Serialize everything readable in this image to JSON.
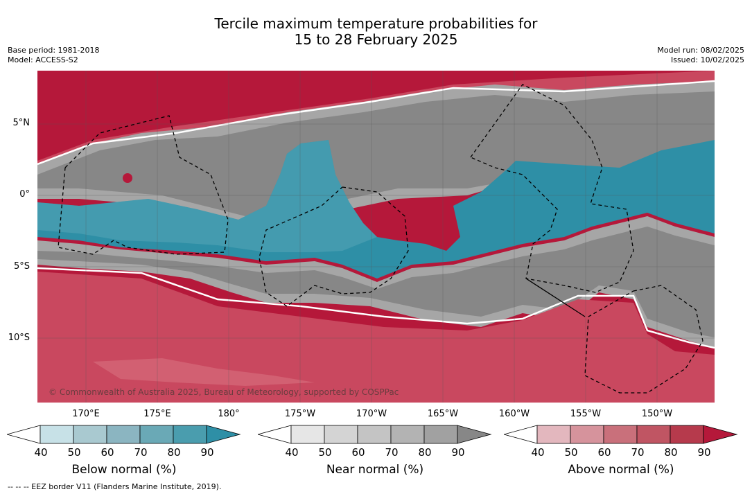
{
  "title": {
    "line1": "Tercile maximum temperature probabilities for",
    "line2": "15 to 28 February 2025"
  },
  "left_info": {
    "base_period": "Base period: 1981-2018",
    "model": "Model: ACCESS-S2"
  },
  "right_info": {
    "model_run": "Model run: 08/02/2025",
    "issued": "Issued: 10/02/2025"
  },
  "map": {
    "lat_labels": [
      "5°N",
      "0°",
      "5°S",
      "10°S"
    ],
    "lon_labels": [
      "170°E",
      "175°E",
      "180°",
      "175°W",
      "170°W",
      "165°W",
      "160°W",
      "155°W",
      "150°W"
    ],
    "copyright": "© Commonwealth of Australia 2025, Bureau of Meteorology, supported by COSPPac",
    "colors": {
      "above_strong": "#b5183a",
      "above_mid": "#c9485f",
      "above_light": "#d9717f",
      "near_dark": "#878787",
      "near_mid": "#a6a6a6",
      "near_light": "#c9c9c9",
      "below_strong": "#2e8fa6",
      "below_mid": "#5aa8b7",
      "below_light": "#a8d3dc"
    }
  },
  "colorbars": [
    {
      "title": "Below normal (%)",
      "ticks": [
        "40",
        "50",
        "60",
        "70",
        "80",
        "90"
      ],
      "colors": [
        "#ffffff",
        "#c7e1e7",
        "#a9c9d0",
        "#8bb5c1",
        "#6aa9b6",
        "#4a9dae",
        "#2e8fa6"
      ]
    },
    {
      "title": "Near normal (%)",
      "ticks": [
        "40",
        "50",
        "60",
        "70",
        "80",
        "90"
      ],
      "colors": [
        "#ffffff",
        "#e6e6e6",
        "#d4d4d4",
        "#c4c4c4",
        "#b3b3b3",
        "#a1a1a1",
        "#878787"
      ]
    },
    {
      "title": "Above normal (%)",
      "ticks": [
        "40",
        "50",
        "60",
        "70",
        "80",
        "90"
      ],
      "colors": [
        "#ffffff",
        "#e3b7be",
        "#d6939c",
        "#c9707b",
        "#c05563",
        "#b63a4c",
        "#b5183a"
      ]
    }
  ],
  "footnote": "-- -- -- EEZ border V11 (Flanders Marine Institute, 2019)."
}
